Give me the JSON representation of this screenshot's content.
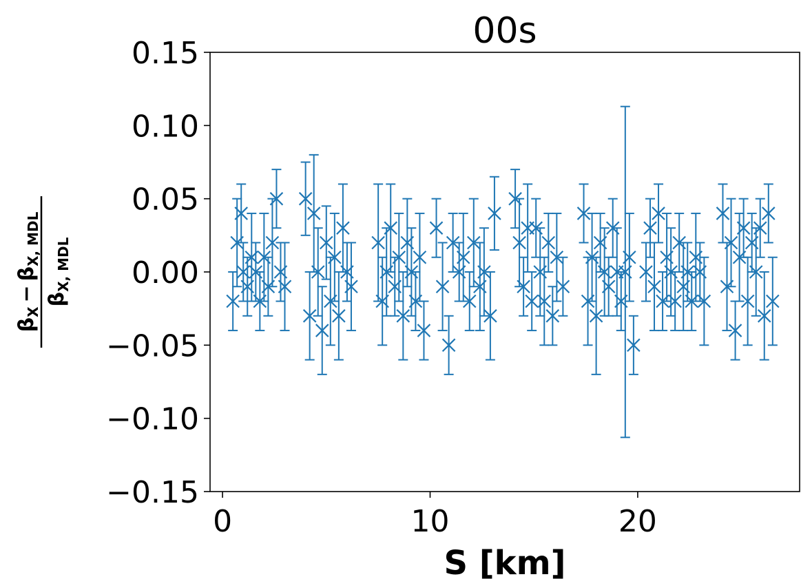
{
  "chart_data": {
    "type": "scatter",
    "title": "00s",
    "xlabel": "S [km]",
    "ylabel": {
      "num_left": "β",
      "num_left_sub": "X",
      "minus": "−",
      "num_right": "β",
      "num_right_sub": "X, MDL",
      "den": "β",
      "den_sub": "X, MDL"
    },
    "xlim": [
      -0.6,
      27.8
    ],
    "ylim": [
      -0.15,
      0.15
    ],
    "xticks": [
      0,
      10,
      20
    ],
    "xtick_labels": [
      "0",
      "10",
      "20"
    ],
    "yticks": [
      -0.15,
      -0.1,
      -0.05,
      0.0,
      0.05,
      0.1,
      0.15
    ],
    "ytick_labels": [
      "−0.15",
      "−0.10",
      "−0.05",
      "0.00",
      "0.05",
      "0.10",
      "0.15"
    ],
    "grid": false,
    "legend": "none",
    "marker": "x",
    "color": "#1f77b4",
    "series": [
      {
        "x": [
          0.5,
          0.7,
          0.9,
          1.0,
          1.2,
          1.4,
          1.6,
          1.8,
          2.0,
          2.2,
          2.4,
          2.6,
          2.8,
          3.0,
          4.0,
          4.2,
          4.4,
          4.6,
          4.8,
          5.0,
          5.2,
          5.4,
          5.6,
          5.8,
          6.0,
          6.2,
          7.5,
          7.7,
          7.9,
          8.1,
          8.3,
          8.5,
          8.7,
          8.9,
          9.1,
          9.3,
          9.5,
          9.7,
          10.3,
          10.6,
          10.9,
          11.1,
          11.4,
          11.6,
          11.9,
          12.1,
          12.4,
          12.6,
          12.9,
          13.1,
          14.1,
          14.3,
          14.5,
          14.7,
          14.9,
          15.1,
          15.3,
          15.5,
          15.7,
          15.9,
          16.1,
          16.4,
          17.4,
          17.6,
          17.8,
          18.0,
          18.2,
          18.4,
          18.6,
          18.8,
          19.0,
          19.2,
          19.4,
          19.6,
          19.8,
          20.4,
          20.6,
          20.8,
          21.0,
          21.2,
          21.4,
          21.6,
          21.8,
          22.0,
          22.2,
          22.4,
          22.6,
          22.8,
          23.0,
          23.2,
          24.1,
          24.3,
          24.5,
          24.7,
          24.9,
          25.1,
          25.3,
          25.5,
          25.7,
          25.9,
          26.1,
          26.3,
          26.5
        ],
        "y": [
          -0.02,
          0.02,
          0.04,
          0.0,
          -0.01,
          0.01,
          0.0,
          -0.02,
          0.01,
          -0.01,
          0.02,
          0.05,
          0.0,
          -0.01,
          0.05,
          -0.03,
          0.04,
          0.0,
          -0.04,
          0.02,
          -0.02,
          0.01,
          -0.03,
          0.03,
          0.0,
          -0.01,
          0.02,
          -0.02,
          0.0,
          0.03,
          -0.01,
          0.01,
          -0.03,
          0.02,
          0.0,
          -0.02,
          0.01,
          -0.04,
          0.03,
          -0.01,
          -0.05,
          0.02,
          0.0,
          0.01,
          -0.02,
          0.02,
          -0.01,
          0.0,
          -0.03,
          0.04,
          0.05,
          0.02,
          -0.01,
          0.03,
          -0.02,
          0.03,
          0.0,
          -0.02,
          0.02,
          -0.03,
          0.01,
          -0.01,
          0.04,
          -0.02,
          0.01,
          -0.03,
          0.02,
          0.0,
          -0.01,
          0.03,
          0.0,
          -0.02,
          0.0,
          0.01,
          -0.05,
          0.0,
          0.03,
          -0.01,
          0.04,
          -0.02,
          0.01,
          0.0,
          -0.02,
          0.02,
          -0.01,
          0.0,
          -0.02,
          0.01,
          0.0,
          -0.02,
          0.04,
          -0.01,
          0.02,
          -0.04,
          0.01,
          0.03,
          -0.02,
          0.02,
          0.0,
          0.03,
          -0.03,
          0.04,
          -0.02
        ],
        "yerr": [
          0.02,
          0.03,
          0.02,
          0.02,
          0.02,
          0.03,
          0.02,
          0.02,
          0.03,
          0.02,
          0.03,
          0.02,
          0.02,
          0.03,
          0.025,
          0.03,
          0.04,
          0.03,
          0.03,
          0.025,
          0.03,
          0.03,
          0.03,
          0.03,
          0.02,
          0.03,
          0.04,
          0.03,
          0.03,
          0.03,
          0.02,
          0.03,
          0.03,
          0.03,
          0.03,
          0.02,
          0.03,
          0.02,
          0.02,
          0.03,
          0.02,
          0.02,
          0.02,
          0.03,
          0.02,
          0.03,
          0.03,
          0.03,
          0.03,
          0.025,
          0.02,
          0.03,
          0.02,
          0.03,
          0.02,
          0.02,
          0.03,
          0.03,
          0.02,
          0.02,
          0.03,
          0.02,
          0.02,
          0.03,
          0.03,
          0.04,
          0.02,
          0.03,
          0.02,
          0.02,
          0.03,
          0.02,
          0.113,
          0.03,
          0.02,
          0.02,
          0.02,
          0.03,
          0.02,
          0.02,
          0.03,
          0.03,
          0.02,
          0.02,
          0.03,
          0.02,
          0.02,
          0.03,
          0.02,
          0.03,
          0.02,
          0.03,
          0.03,
          0.02,
          0.03,
          0.02,
          0.03,
          0.02,
          0.03,
          0.02,
          0.03,
          0.02,
          0.03
        ]
      }
    ]
  }
}
